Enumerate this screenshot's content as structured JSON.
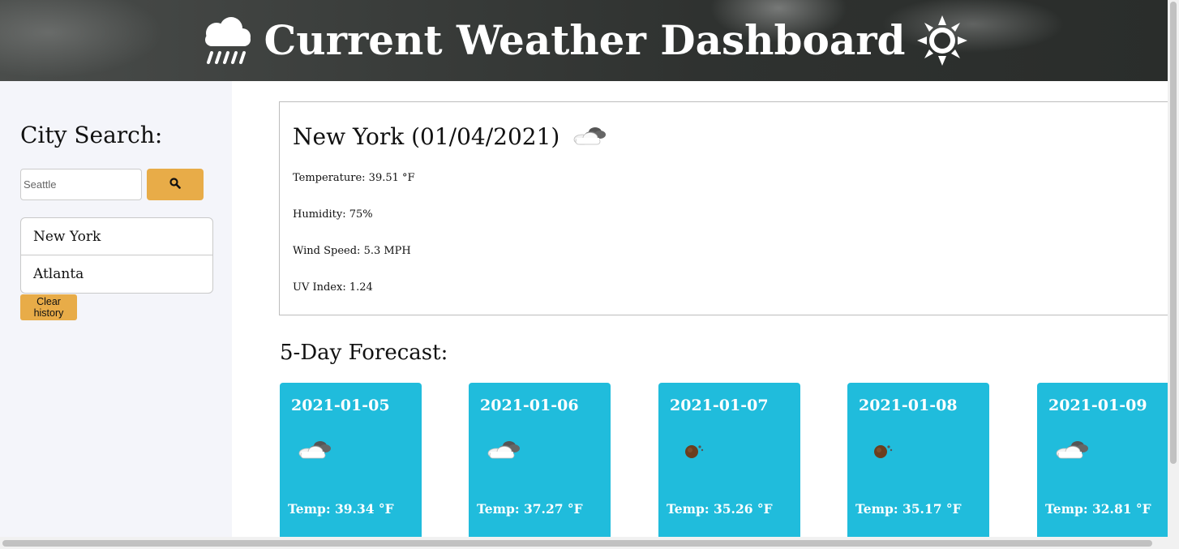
{
  "header": {
    "title": "Current Weather Dashboard",
    "left_icon": "rain-cloud-icon",
    "right_icon": "sun-icon"
  },
  "sidebar": {
    "title": "City Search:",
    "search": {
      "value": "",
      "placeholder": "Seattle"
    },
    "search_button_icon": "search-icon",
    "history": [
      "New York",
      "Atlanta"
    ],
    "clear_label": "Clear history"
  },
  "current": {
    "city_date": "New York (01/04/2021)",
    "icon": "cloudy-icon",
    "temperature": "Temperature: 39.51 °F",
    "humidity": "Humidity: 75%",
    "wind": "Wind Speed: 5.3 MPH",
    "uv": "UV Index: 1.24"
  },
  "forecast": {
    "title": "5-Day Forecast:",
    "days": [
      {
        "date": "2021-01-05",
        "icon": "cloudy-icon",
        "temp": "Temp: 39.34 °F"
      },
      {
        "date": "2021-01-06",
        "icon": "cloudy-icon",
        "temp": "Temp: 37.27 °F"
      },
      {
        "date": "2021-01-07",
        "icon": "dark-moon-icon",
        "temp": "Temp: 35.26 °F"
      },
      {
        "date": "2021-01-08",
        "icon": "dark-moon-icon",
        "temp": "Temp: 35.17 °F"
      },
      {
        "date": "2021-01-09",
        "icon": "cloudy-icon",
        "temp": "Temp: 32.81 °F"
      }
    ]
  },
  "colors": {
    "accent": "#e8ac48",
    "forecast_card": "#20bcdc",
    "sidebar_bg": "#f4f5fa"
  }
}
